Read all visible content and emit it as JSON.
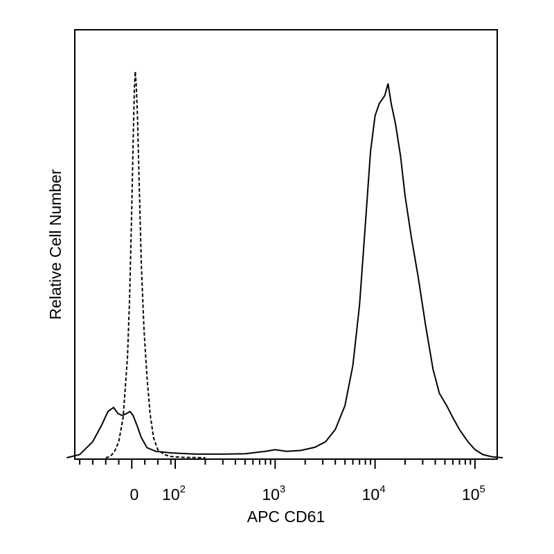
{
  "chart_data": {
    "type": "line",
    "xlabel": "APC CD61",
    "ylabel": "Relative Cell Number",
    "x_scale": "biexponential",
    "y_tick_labels": false,
    "x_tick_labels": [
      {
        "value": 0,
        "base": "0",
        "exp": ""
      },
      {
        "value": 100,
        "base": "10",
        "exp": "2"
      },
      {
        "value": 1000,
        "base": "10",
        "exp": "3"
      },
      {
        "value": 10000,
        "base": "10",
        "exp": "4"
      },
      {
        "value": 100000,
        "base": "10",
        "exp": "5"
      }
    ],
    "ylim": [
      0,
      100
    ],
    "grid": false,
    "legend": "none",
    "series": [
      {
        "style": "dashed",
        "color": "#000000",
        "points": [
          [
            -60,
            0
          ],
          [
            -50,
            0.3
          ],
          [
            -40,
            1.5
          ],
          [
            -30,
            4
          ],
          [
            -20,
            10
          ],
          [
            -10,
            25
          ],
          [
            -5,
            40
          ],
          [
            0,
            62
          ],
          [
            3,
            78
          ],
          [
            6,
            92
          ],
          [
            8,
            96
          ],
          [
            10,
            93
          ],
          [
            13,
            85
          ],
          [
            17,
            68
          ],
          [
            22,
            48
          ],
          [
            28,
            32
          ],
          [
            35,
            20
          ],
          [
            42,
            11
          ],
          [
            50,
            5
          ],
          [
            60,
            2
          ],
          [
            75,
            0.8
          ],
          [
            90,
            0.3
          ],
          [
            120,
            0.1
          ],
          [
            200,
            0
          ]
        ]
      },
      {
        "style": "solid",
        "color": "#000000",
        "points": [
          [
            -150,
            0
          ],
          [
            -120,
            0.8
          ],
          [
            -90,
            4
          ],
          [
            -70,
            8
          ],
          [
            -55,
            11.5
          ],
          [
            -42,
            12.5
          ],
          [
            -32,
            11
          ],
          [
            -22,
            10.5
          ],
          [
            -12,
            11
          ],
          [
            -4,
            11.5
          ],
          [
            3,
            10.5
          ],
          [
            12,
            8
          ],
          [
            22,
            5
          ],
          [
            35,
            2.5
          ],
          [
            55,
            1.6
          ],
          [
            90,
            1.2
          ],
          [
            160,
            0.9
          ],
          [
            300,
            0.9
          ],
          [
            500,
            1
          ],
          [
            800,
            1.6
          ],
          [
            1000,
            2
          ],
          [
            1300,
            1.6
          ],
          [
            1800,
            1.8
          ],
          [
            2500,
            2.6
          ],
          [
            3200,
            4
          ],
          [
            4000,
            7
          ],
          [
            5000,
            13
          ],
          [
            6000,
            23
          ],
          [
            7000,
            38
          ],
          [
            8000,
            58
          ],
          [
            9000,
            76
          ],
          [
            10000,
            85
          ],
          [
            11000,
            88
          ],
          [
            12500,
            90
          ],
          [
            13500,
            93
          ],
          [
            14500,
            88
          ],
          [
            16000,
            83
          ],
          [
            18000,
            75
          ],
          [
            20000,
            65
          ],
          [
            23000,
            55
          ],
          [
            27000,
            45
          ],
          [
            32000,
            33
          ],
          [
            38000,
            22
          ],
          [
            44000,
            16
          ],
          [
            52000,
            13
          ],
          [
            60000,
            10
          ],
          [
            70000,
            7
          ],
          [
            85000,
            4
          ],
          [
            100000,
            2
          ],
          [
            120000,
            0.8
          ],
          [
            150000,
            0.2
          ],
          [
            190000,
            0
          ]
        ]
      }
    ]
  }
}
